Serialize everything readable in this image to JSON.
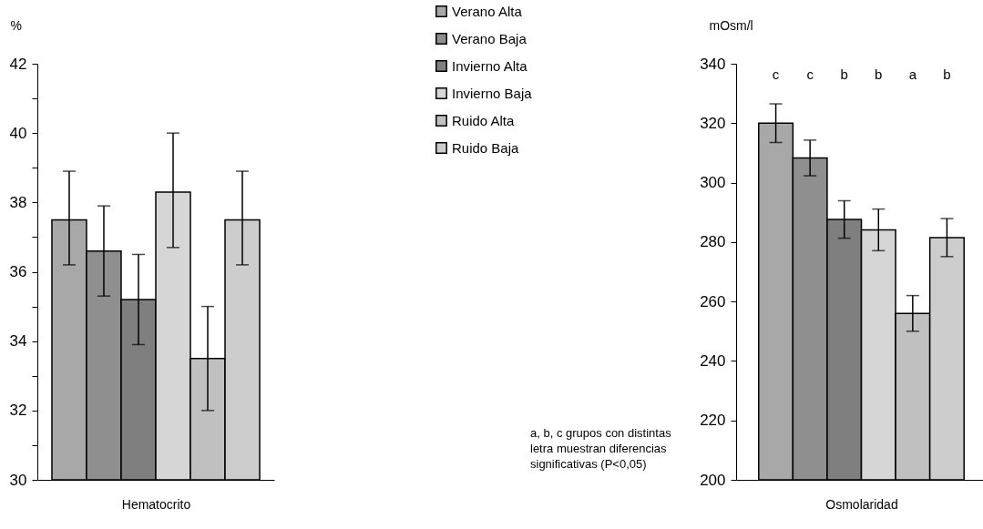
{
  "chart_data": [
    {
      "type": "bar",
      "ylabel": "%",
      "xlabel": "Hematocrito",
      "categories": [
        null
      ],
      "ylim": [
        30,
        42
      ],
      "yticks": [
        30,
        {
          "value": 31,
          "label": null
        },
        32,
        {
          "value": 33,
          "label": null
        },
        34,
        {
          "value": 35,
          "label": null
        },
        36,
        {
          "value": 37,
          "label": null
        },
        38,
        {
          "value": 39,
          "label": null
        },
        40,
        {
          "value": 41,
          "label": null
        },
        42
      ],
      "legend": "right",
      "series": [
        {
          "name": "Verano Alta",
          "color": "#a8a8a8",
          "values": [
            37.5
          ],
          "errors": [
            [
              36.2,
              38.9
            ]
          ]
        },
        {
          "name": "Verano Baja",
          "color": "#8f8f8f",
          "values": [
            36.6
          ],
          "errors": [
            [
              35.3,
              37.9
            ]
          ]
        },
        {
          "name": "Invierno Alta",
          "color": "#7f7f7f",
          "values": [
            35.2
          ],
          "errors": [
            [
              33.9,
              36.5
            ]
          ]
        },
        {
          "name": "Invierno Baja",
          "color": "#d6d6d6",
          "values": [
            38.3
          ],
          "errors": [
            [
              36.7,
              40.0
            ]
          ]
        },
        {
          "name": "Ruido Alta",
          "color": "#c0c0c0",
          "values": [
            33.5
          ],
          "errors": [
            [
              32.0,
              35.0
            ]
          ]
        },
        {
          "name": "Ruido Baja",
          "color": "#cdcdcd",
          "values": [
            37.5
          ],
          "errors": [
            [
              36.2,
              38.9
            ]
          ]
        }
      ],
      "annotations": [
        "a, b, c grupos con distintas letra muestran diferencias significativas (P<0,05)"
      ]
    },
    {
      "type": "bar",
      "ylabel": "mOsm/l",
      "xlabel": "Osmolaridad",
      "categories": [
        null
      ],
      "ylim": [
        200,
        340
      ],
      "yticks": [
        200,
        220,
        240,
        260,
        280,
        300,
        320,
        340
      ],
      "series": [
        {
          "color": "#a8a8a8",
          "values": [
            320
          ],
          "errors": [
            6.5
          ]
        },
        {
          "color": "#8f8f8f",
          "values": [
            308.3
          ],
          "errors": [
            6
          ]
        },
        {
          "color": "#7f7f7f",
          "values": [
            287.6
          ],
          "errors": [
            6.3
          ]
        },
        {
          "color": "#d6d6d6",
          "values": [
            284.1
          ],
          "errors": [
            7
          ]
        },
        {
          "color": "#c0c0c0",
          "values": [
            256
          ],
          "errors": [
            6
          ]
        },
        {
          "color": "#cdcdcd",
          "values": [
            281.5
          ],
          "errors": [
            6.4
          ]
        }
      ],
      "annotations": [
        "c",
        "c",
        "b",
        "b",
        "a",
        "b"
      ]
    }
  ]
}
